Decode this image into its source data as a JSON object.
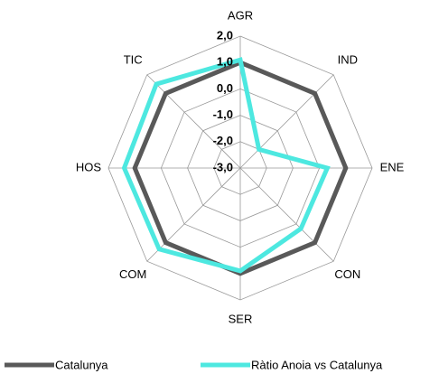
{
  "chart_data": {
    "type": "radar",
    "categories": [
      "AGR",
      "IND",
      "ENE",
      "CON",
      "SER",
      "COM",
      "HOS",
      "TIC"
    ],
    "series": [
      {
        "name": "Catalunya",
        "color": "#595959",
        "values": [
          1.0,
          1.0,
          1.0,
          1.0,
          1.0,
          1.0,
          1.0,
          1.0
        ]
      },
      {
        "name": "Ràtio Anoia vs Catalunya",
        "color": "#4de8e0",
        "values": [
          1.1,
          -2.0,
          0.3,
          0.25,
          0.9,
          1.35,
          1.4,
          1.5
        ]
      }
    ],
    "ylim": [
      -3,
      2
    ],
    "yticks": [
      {
        "value": 2,
        "label": "2,0"
      },
      {
        "value": 1,
        "label": "1,0"
      },
      {
        "value": 0,
        "label": "0,0"
      },
      {
        "value": -1,
        "label": "-1,0"
      },
      {
        "value": -2,
        "label": "-2,0"
      },
      {
        "value": -3,
        "label": "-3,0"
      }
    ],
    "grid": true,
    "legend": "bottom"
  }
}
